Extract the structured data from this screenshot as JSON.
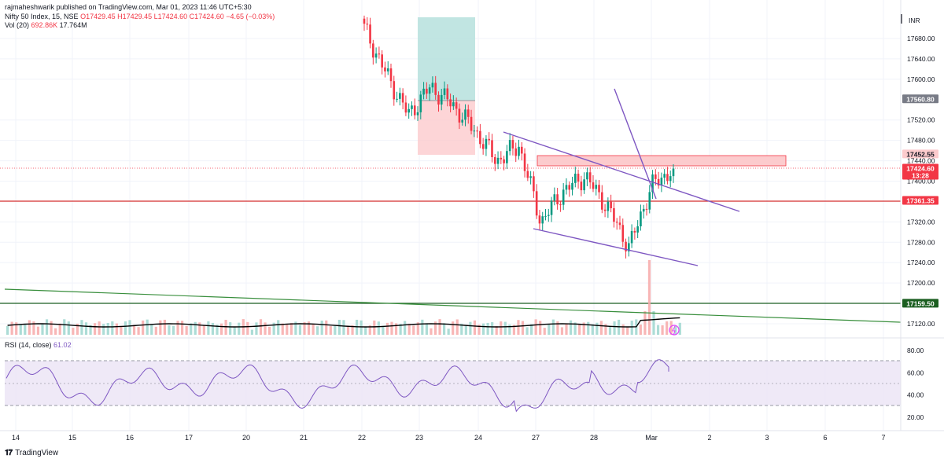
{
  "header": {
    "published": "rajmaheshwarik published on TradingView.com, Mar 01, 2023 11:46 UTC+5:30",
    "symbol": "Nifty 50 Index, 15, NSE",
    "ohlc": "O17429.45 H17429.45 L17424.60 C17424.60 −4.65 (−0.03%)",
    "volume_label": "Vol (20)",
    "volume_value": "692.86K",
    "volume_ma": "17.764M"
  },
  "currency": "INR",
  "price_axis": {
    "ticks": [
      17680,
      17640,
      17600,
      17520,
      17480,
      17440,
      17400,
      17320,
      17280,
      17240,
      17200,
      17120
    ]
  },
  "price_tags": [
    {
      "text": "17560.80",
      "value": 17560.8,
      "color": "#787b86",
      "textColor": "#ffffff"
    },
    {
      "text": "17452.55",
      "value": 17452.55,
      "color": "#fccbcd",
      "textColor": "#131722"
    },
    {
      "text": "17424.60",
      "value": 17424.6,
      "color": "#f23645",
      "textColor": "#ffffff",
      "sub": "13:28"
    },
    {
      "text": "17361.35",
      "value": 17361.35,
      "color": "#f23645",
      "textColor": "#ffffff"
    },
    {
      "text": "17159.50",
      "value": 17159.5,
      "color": "#1b5e20",
      "textColor": "#ffffff"
    }
  ],
  "rsi": {
    "label": "RSI (14, close)",
    "value": "61.02",
    "ticks": [
      80,
      60,
      40,
      20
    ],
    "bands": [
      70,
      50,
      30
    ]
  },
  "x_axis_labels": [
    "14",
    "15",
    "16",
    "17",
    "20",
    "21",
    "22",
    "23",
    "24",
    "27",
    "28",
    "Mar",
    "2",
    "3",
    "6",
    "7"
  ],
  "footer": {
    "brand": "TradingView"
  },
  "chart_data": {
    "type": "candlestick",
    "symbol": "Nifty 50 Index",
    "interval": "15",
    "exchange": "NSE",
    "approximate_close_path": [
      {
        "session": "22",
        "close": 17700
      },
      {
        "session": "22",
        "close": 17610
      },
      {
        "session": "23",
        "close": 17530
      },
      {
        "session": "23",
        "close": 17585
      },
      {
        "session": "24",
        "close": 17550
      },
      {
        "session": "24",
        "close": 17500
      },
      {
        "session": "24",
        "close": 17440
      },
      {
        "session": "27",
        "close": 17470
      },
      {
        "session": "27",
        "close": 17320
      },
      {
        "session": "27",
        "close": 17380
      },
      {
        "session": "28",
        "close": 17410
      },
      {
        "session": "28",
        "close": 17350
      },
      {
        "session": "28",
        "close": 17270
      },
      {
        "session": "Mar",
        "close": 17390
      },
      {
        "session": "Mar",
        "close": 17424.6
      }
    ],
    "horizontal_levels": [
      17361.35,
      17159.5
    ],
    "zones": [
      {
        "name": "resistance-zone",
        "from": 17440,
        "to": 17456
      },
      {
        "name": "position-target",
        "from": 17560,
        "to": 17720
      },
      {
        "name": "position-stop",
        "from": 17460,
        "to": 17560
      }
    ]
  }
}
